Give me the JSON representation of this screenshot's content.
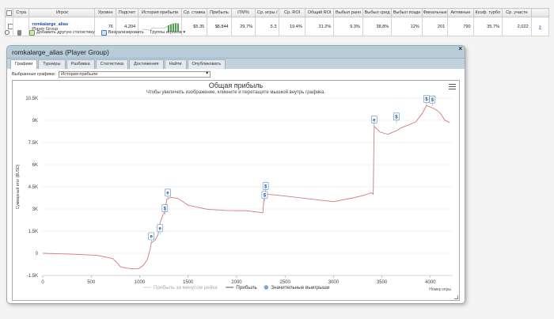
{
  "table": {
    "headers": [
      "Стра",
      "Игрок",
      "Уровен",
      "Подсчет",
      "История прибыли",
      "Ср. ставка",
      "Прибыль",
      "ITM%",
      "Ср. игры /",
      "Ср. ROI",
      "Общий ROI",
      "Выбыл рано",
      "Выбыл сред",
      "Выбыл поздн",
      "Финальные",
      "Активные",
      "Коэф. турбо",
      "Ср. участн"
    ],
    "row": {
      "player_name": "romkalarge_alias",
      "player_group": "Player Group",
      "level": "76",
      "count": "4,204",
      "avg_stake": "$5.35",
      "profit": "$8,844",
      "itm": "29.7%",
      "avg_games": "5.3",
      "avg_roi": "19.4%",
      "total_roi": "31.2%",
      "out_early": "9.3%",
      "out_mid": "38.8%",
      "out_late": "12%",
      "finals": "201",
      "active": "790",
      "turbo": "35.7%",
      "avg_participants": "2,022",
      "link": "з"
    }
  },
  "action_bar": {
    "add_stats": "Добавить другую статистику",
    "visualize": "Визуализировать",
    "player_groups": "Группы игроков ▾"
  },
  "panel": {
    "title": "romkalarge_alias (Player Group)",
    "close": "×",
    "tabs": [
      "Графики",
      "Турниры",
      "Разбивка",
      "Статистика",
      "Достижения",
      "Найти",
      "Опубликовать"
    ],
    "active_tab": 0,
    "select_label": "Выбранные графики:",
    "select_value": "История прибыли"
  },
  "chart_data": {
    "type": "line",
    "title": "Общая прибыль",
    "subtitle": "Чтобы увеличить изображение, кликните и перетащите мышкой внутрь графика.",
    "ylabel": "Суммарный итог ($USD)",
    "xlabel": "Номер игры",
    "xlim": [
      0,
      4230
    ],
    "ylim": [
      -1500,
      10500
    ],
    "xticks": [
      0,
      500,
      1000,
      1500,
      2000,
      2500,
      3000,
      3500,
      4000
    ],
    "yticks": [
      -1500,
      0,
      1500,
      3000,
      4500,
      6000,
      7500,
      9000,
      10500
    ],
    "ytick_labels": [
      "-1.5K",
      "0",
      "1.5K",
      "3K",
      "4.5K",
      "6K",
      "7.5K",
      "9K",
      "10.5K"
    ],
    "series": [
      {
        "name": "Прибыль",
        "color": "#d47a7a",
        "points": [
          [
            0,
            0
          ],
          [
            150,
            -30
          ],
          [
            300,
            -60
          ],
          [
            450,
            -100
          ],
          [
            560,
            -140
          ],
          [
            650,
            -250
          ],
          [
            720,
            -350
          ],
          [
            760,
            -600
          ],
          [
            800,
            -900
          ],
          [
            860,
            -1000
          ],
          [
            920,
            -1050
          ],
          [
            990,
            -1040
          ],
          [
            1040,
            -800
          ],
          [
            1080,
            -400
          ],
          [
            1110,
            350
          ],
          [
            1120,
            700
          ],
          [
            1160,
            900
          ],
          [
            1190,
            1250
          ],
          [
            1210,
            2050
          ],
          [
            1240,
            2600
          ],
          [
            1260,
            2800
          ],
          [
            1280,
            3650
          ],
          [
            1320,
            3800
          ],
          [
            1400,
            3700
          ],
          [
            1500,
            3250
          ],
          [
            1700,
            2980
          ],
          [
            1900,
            2900
          ],
          [
            2100,
            2880
          ],
          [
            2270,
            2750
          ],
          [
            2280,
            3500
          ],
          [
            2290,
            4000
          ],
          [
            2400,
            3950
          ],
          [
            2600,
            3800
          ],
          [
            2800,
            3650
          ],
          [
            3000,
            3500
          ],
          [
            3200,
            3750
          ],
          [
            3300,
            3900
          ],
          [
            3390,
            4100
          ],
          [
            3410,
            4000
          ],
          [
            3420,
            8600
          ],
          [
            3480,
            8200
          ],
          [
            3560,
            8050
          ],
          [
            3650,
            8300
          ],
          [
            3700,
            8500
          ],
          [
            3780,
            8700
          ],
          [
            3850,
            8900
          ],
          [
            3920,
            9500
          ],
          [
            3960,
            10000
          ],
          [
            4000,
            9900
          ],
          [
            4050,
            9750
          ],
          [
            4100,
            9500
          ],
          [
            4150,
            9000
          ],
          [
            4200,
            8850
          ]
        ]
      }
    ],
    "markers": [
      {
        "x": 1120,
        "y": 700,
        "label": "e"
      },
      {
        "x": 1210,
        "y": 1250,
        "label": "e"
      },
      {
        "x": 1260,
        "y": 2600,
        "label": "$"
      },
      {
        "x": 1290,
        "y": 3650,
        "label": "e"
      },
      {
        "x": 2290,
        "y": 3500,
        "label": "$"
      },
      {
        "x": 2300,
        "y": 4100,
        "label": "$"
      },
      {
        "x": 3420,
        "y": 8600,
        "label": "e"
      },
      {
        "x": 3650,
        "y": 8800,
        "label": "$"
      },
      {
        "x": 3960,
        "y": 10000,
        "label": "$"
      },
      {
        "x": 4020,
        "y": 9950,
        "label": "$"
      }
    ],
    "legend": [
      {
        "label": "Прибыль за минусом рейка",
        "color": "#cccccc",
        "kind": "line"
      },
      {
        "label": "Прибыль",
        "color": "#555555",
        "kind": "line"
      },
      {
        "label": "Значительные выигрыши",
        "color": "#7aa7d9",
        "kind": "dot"
      }
    ],
    "grid": true,
    "legend_position": "bottom"
  }
}
